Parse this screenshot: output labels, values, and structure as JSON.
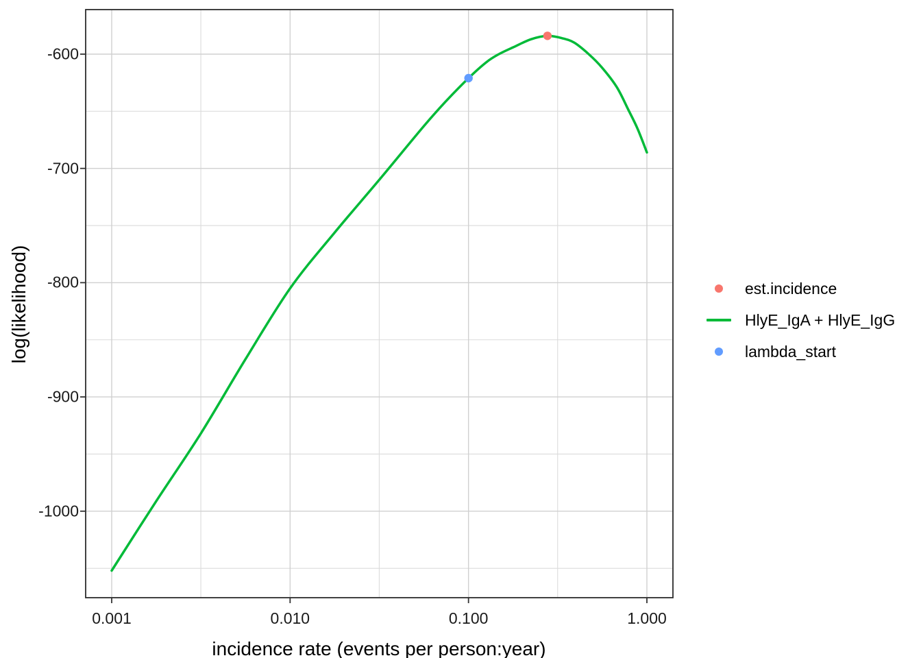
{
  "figure": {
    "background": "#FFFFFF"
  },
  "chart_data": {
    "type": "line",
    "title": "",
    "xlabel": "incidence rate (events per person:year)",
    "ylabel": "log(likelihood)",
    "x_scale": "log10",
    "xlim": [
      0.001,
      1.0
    ],
    "ylim": [
      -1076,
      -561
    ],
    "grid": true,
    "legend_position": "right",
    "x_ticks": {
      "values": [
        0.001,
        0.01,
        0.1,
        1.0
      ],
      "labels": [
        "0.001",
        "0.010",
        "0.100",
        "1.000"
      ]
    },
    "x_minor_breaks": [
      0.00316,
      0.0316,
      0.316
    ],
    "y_ticks": {
      "values": [
        -600,
        -700,
        -800,
        -900,
        -1000
      ],
      "labels": [
        "-600",
        "-700",
        "-800",
        "-900",
        "-1000"
      ]
    },
    "y_minor_breaks": [
      -650,
      -750,
      -850,
      -950,
      -1050
    ],
    "series": [
      {
        "name": "HlyE_IgA + HlyE_IgG",
        "geom": "line",
        "color": "#00BA38",
        "points": [
          [
            0.001,
            -1052
          ],
          [
            0.00178,
            -991
          ],
          [
            0.00316,
            -932
          ],
          [
            0.00562,
            -867
          ],
          [
            0.01,
            -805
          ],
          [
            0.0178,
            -756
          ],
          [
            0.0316,
            -710
          ],
          [
            0.0562,
            -663
          ],
          [
            0.075,
            -641
          ],
          [
            0.1,
            -621
          ],
          [
            0.126,
            -607
          ],
          [
            0.148,
            -600
          ],
          [
            0.178,
            -594
          ],
          [
            0.224,
            -587
          ],
          [
            0.277,
            -584
          ],
          [
            0.334,
            -586
          ],
          [
            0.392,
            -590
          ],
          [
            0.472,
            -600
          ],
          [
            0.562,
            -612
          ],
          [
            0.679,
            -629
          ],
          [
            0.789,
            -649
          ],
          [
            0.885,
            -665
          ],
          [
            1.0,
            -686
          ]
        ]
      },
      {
        "name": "est.incidence",
        "geom": "point",
        "color": "#F8766D",
        "points": [
          [
            0.277,
            -584
          ]
        ]
      },
      {
        "name": "lambda_start",
        "geom": "point",
        "color": "#619CFF",
        "points": [
          [
            0.1,
            -621
          ]
        ]
      }
    ],
    "legend": {
      "items": [
        {
          "label": "est.incidence",
          "symbol": "point",
          "color": "#F8766D"
        },
        {
          "label": "HlyE_IgA + HlyE_IgG",
          "symbol": "line",
          "color": "#00BA38"
        },
        {
          "label": "lambda_start",
          "symbol": "point",
          "color": "#619CFF"
        }
      ]
    },
    "colors": {
      "grid_major": "#D0D0D0",
      "grid_minor": "#DBDBDB",
      "panel_border": "#2B2B2B",
      "tick_marks": "#333333",
      "axis_text": "#1A1A1A"
    }
  }
}
